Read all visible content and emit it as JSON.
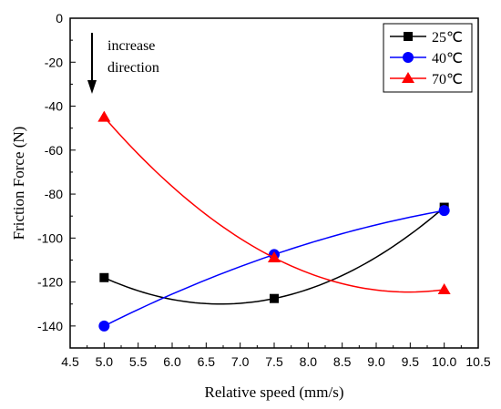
{
  "chart_data": {
    "type": "line",
    "xlabel": "Relative speed (mm/s)",
    "ylabel": "Friction Force (N)",
    "xlim": [
      4.5,
      10.5
    ],
    "ylim": [
      -150,
      0
    ],
    "x_ticks": [
      "4.5",
      "5.0",
      "5.5",
      "6.0",
      "6.5",
      "7.0",
      "7.5",
      "8.0",
      "8.5",
      "9.0",
      "9.5",
      "10.0",
      "10.5"
    ],
    "y_ticks": [
      "0",
      "-20",
      "-40",
      "-60",
      "-80",
      "-100",
      "-120",
      "-140"
    ],
    "x": [
      5.0,
      7.5,
      10.0
    ],
    "series": [
      {
        "name": "25℃",
        "values": [
          -118,
          -127.5,
          -86
        ],
        "color": "#000000",
        "marker": "square"
      },
      {
        "name": "40℃",
        "values": [
          -140,
          -107.5,
          -87.5
        ],
        "color": "#0000ff",
        "marker": "circle"
      },
      {
        "name": "70℃",
        "values": [
          -45,
          -109,
          -123.5
        ],
        "color": "#ff0000",
        "marker": "triangle"
      }
    ],
    "legend_position": "top-right",
    "grid": false,
    "annotation": {
      "line1": "increase",
      "line2": "direction",
      "icon": "arrow-down-icon"
    }
  }
}
